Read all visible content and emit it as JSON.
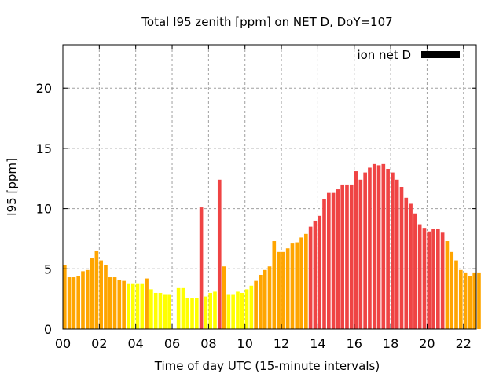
{
  "chart_data": {
    "type": "bar",
    "title": "Total I95 zenith [ppm] on NET D, DoY=107",
    "xlabel": "Time of day UTC (15-minute intervals)",
    "ylabel": "I95 [ppm]",
    "xlim": [
      0,
      22.7
    ],
    "ylim": [
      0,
      23.6
    ],
    "grid": true,
    "legend": {
      "label": "ion net D",
      "placement": "top-right",
      "color": "#000000"
    },
    "x_ticks": [
      0,
      2,
      4,
      6,
      8,
      10,
      12,
      14,
      16,
      18,
      20,
      22
    ],
    "x_tick_labels": [
      "00",
      "02",
      "04",
      "06",
      "08",
      "10",
      "12",
      "14",
      "16",
      "18",
      "20",
      "22"
    ],
    "y_ticks": [
      0,
      5,
      10,
      15,
      20
    ],
    "y_tick_labels": [
      "0",
      "5",
      "10",
      "15",
      "20"
    ],
    "color_thresholds": {
      "low": 4,
      "high": 8,
      "low_color": "#ffff00",
      "mid_color": "#ffa500",
      "high_color": "#ef4444"
    },
    "x": [
      0,
      0.25,
      0.5,
      0.75,
      1,
      1.25,
      1.5,
      1.75,
      2,
      2.25,
      2.5,
      2.75,
      3,
      3.25,
      3.5,
      3.75,
      4,
      4.25,
      4.5,
      4.75,
      5,
      5.25,
      5.5,
      5.75,
      6.25,
      6.5,
      6.75,
      7,
      7.25,
      7.5,
      7.75,
      8,
      8.25,
      8.5,
      8.75,
      9,
      9.25,
      9.5,
      9.75,
      10,
      10.25,
      10.5,
      10.75,
      11,
      11.25,
      11.5,
      11.75,
      12,
      12.25,
      12.5,
      12.75,
      13,
      13.25,
      13.5,
      13.75,
      14,
      14.25,
      14.5,
      14.75,
      15,
      15.25,
      15.5,
      15.75,
      16,
      16.25,
      16.5,
      16.75,
      17,
      17.25,
      17.5,
      17.75,
      18,
      18.25,
      18.5,
      18.75,
      19,
      19.25,
      19.5,
      19.75,
      20,
      20.25,
      20.5,
      20.75,
      21,
      21.25,
      21.5,
      21.75,
      22,
      22.25,
      22.5,
      22.75
    ],
    "values": [
      5.3,
      4.3,
      4.3,
      4.4,
      4.8,
      4.9,
      5.9,
      6.5,
      5.7,
      5.3,
      4.3,
      4.3,
      4.1,
      4.0,
      3.8,
      3.8,
      3.8,
      3.8,
      4.2,
      3.3,
      3.0,
      3.0,
      2.9,
      2.9,
      3.4,
      3.4,
      2.6,
      2.6,
      2.6,
      10.1,
      2.7,
      3.0,
      3.1,
      12.4,
      5.2,
      2.9,
      2.9,
      3.1,
      3.0,
      3.3,
      3.6,
      4.0,
      4.5,
      4.9,
      5.2,
      7.3,
      6.4,
      6.4,
      6.7,
      7.1,
      7.2,
      7.6,
      7.9,
      8.5,
      9.0,
      9.4,
      10.8,
      11.3,
      11.3,
      11.6,
      12.0,
      12.0,
      12.0,
      13.1,
      12.4,
      13.0,
      13.4,
      13.7,
      13.6,
      13.7,
      13.3,
      13.0,
      12.4,
      11.8,
      10.9,
      10.4,
      9.6,
      8.7,
      8.4,
      8.1,
      8.3,
      8.3,
      8.0,
      7.3,
      6.4,
      5.7,
      4.9,
      4.7,
      4.4,
      4.7,
      4.7
    ]
  }
}
